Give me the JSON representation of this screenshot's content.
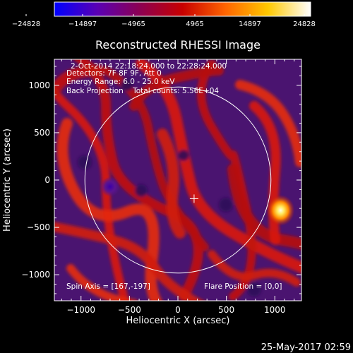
{
  "chart_data": {
    "type": "heatmap",
    "title": "Reconstructed RHESSI Image",
    "xlabel": "Heliocentric X (arcsec)",
    "ylabel": "Heliocentric Y (arcsec)",
    "xlim": [
      -1275,
      1275
    ],
    "ylim": [
      -1275,
      1275
    ],
    "xticks": [
      -1000,
      -500,
      0,
      500,
      1000
    ],
    "yticks": [
      -1000,
      -500,
      0,
      500,
      1000
    ],
    "xtick_labels": [
      "−1000",
      "−500",
      "0",
      "500",
      "1000"
    ],
    "ytick_labels": [
      "−1000",
      "−500",
      "0",
      "500",
      "1000"
    ],
    "colorbar": {
      "ticks": [
        "−24828",
        "−14897",
        "−4965",
        "4965",
        "14897",
        "24828"
      ],
      "min": -24828,
      "max": 24828,
      "colors": [
        "#0000ff",
        "#5a00b4",
        "#8c0052",
        "#c80000",
        "#ff6400",
        "#ffc800",
        "#ffffff"
      ]
    },
    "info_lines": [
      "2-Oct-2014 22:18:24.000 to 22:28:24.000",
      "Detectors: 7F 8F 9F, Att 0",
      "Energy Range: 6.0 - 25.0 keV",
      "Back Projection    Total counts: 5.56E+04"
    ],
    "spin_axis": "Spin Axis = [167,-197]",
    "flare_position": "Flare Position = [0,0]",
    "solar_disk_radius": 960,
    "spin_axis_xy": [
      167,
      -197
    ],
    "sources": [
      {
        "x": 1060,
        "y": -320,
        "value": 24828
      },
      {
        "x": -700,
        "y": -70,
        "value": -24000
      }
    ]
  },
  "timestamp": "25-May-2017 02:59"
}
